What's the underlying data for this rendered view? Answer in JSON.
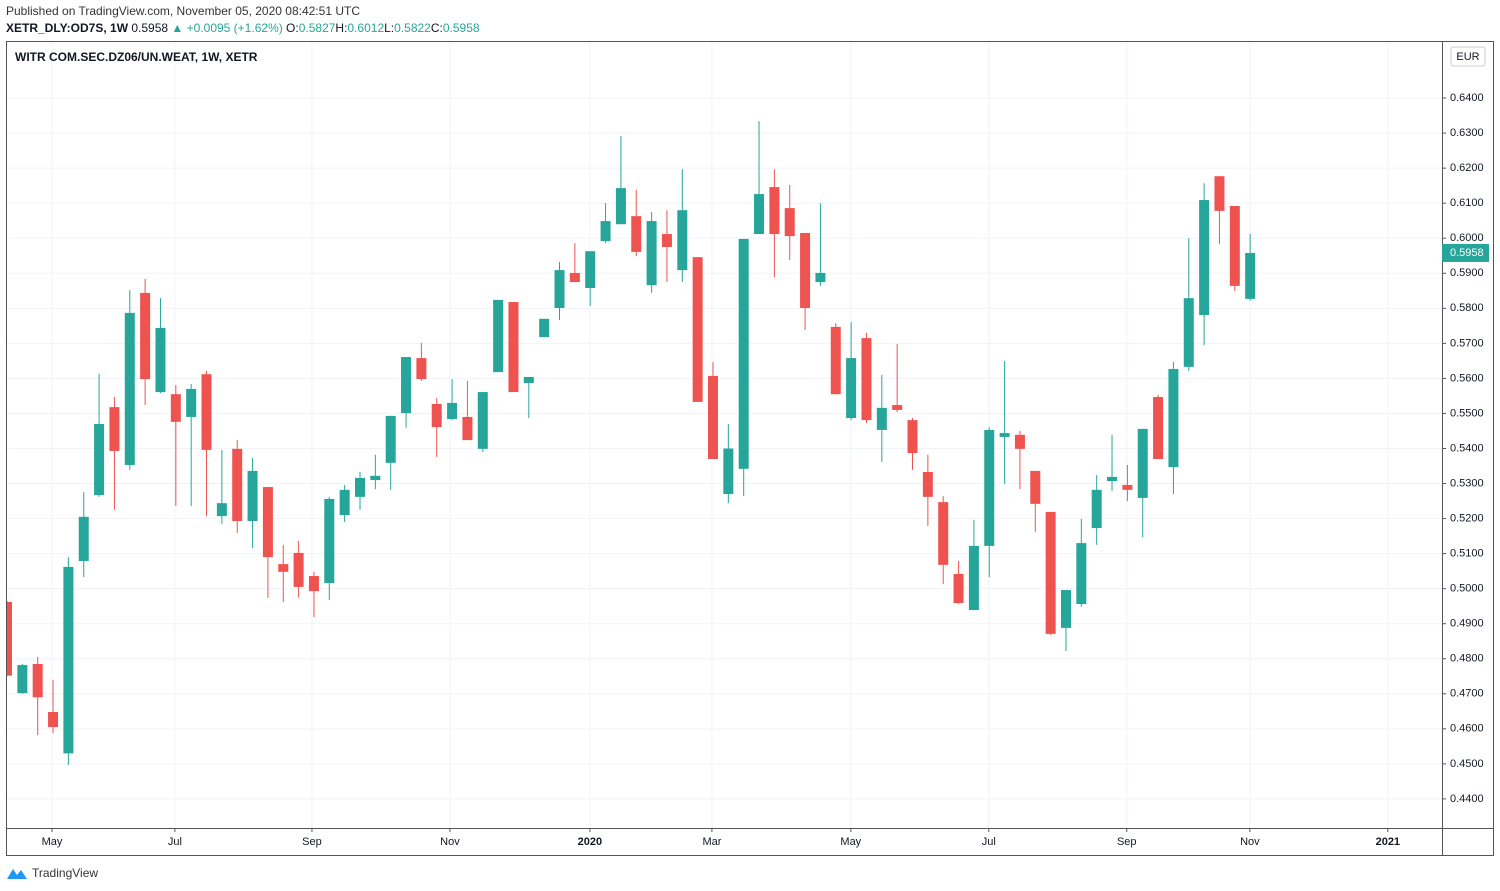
{
  "header": {
    "published": "Published on TradingView.com, November 05, 2020 08:42:51 UTC",
    "symbol": "XETR_DLY:OD7S, 1W",
    "price": "0.5958",
    "change": "▲ +0.0095 (+1.62%)",
    "ohlc": [
      {
        "label": "O:",
        "value": "0.5827"
      },
      {
        "label": "H:",
        "value": "0.6012"
      },
      {
        "label": "L:",
        "value": "0.5822"
      },
      {
        "label": "C:",
        "value": "0.5958"
      }
    ]
  },
  "footer": {
    "brand": "TradingView"
  },
  "chart_data": {
    "type": "candlestick",
    "title": "WITR COM.SEC.DZ06/UN.WEAT, 1W, XETR",
    "currency": "EUR",
    "up_color": "#26a69a",
    "down_color": "#ef5350",
    "grid": true,
    "open": [
      0.4962,
      0.4702,
      0.4785,
      0.4648,
      0.453,
      0.5079,
      0.5267,
      0.5518,
      0.5353,
      0.5844,
      0.5561,
      0.5555,
      0.549,
      0.5612,
      0.5207,
      0.5399,
      0.5193,
      0.529,
      0.507,
      0.5102,
      0.5036,
      0.5016,
      0.521,
      0.5262,
      0.531,
      0.5359,
      0.5501,
      0.5658,
      0.5527,
      0.5484,
      0.549,
      0.5399,
      0.5618,
      0.5818,
      0.5587,
      0.5718,
      0.5801,
      0.5901,
      0.5858,
      0.5992,
      0.604,
      0.6063,
      0.5866,
      0.6012,
      0.5909,
      0.5946,
      0.5607,
      0.527,
      0.5342,
      0.6012,
      0.6146,
      0.6086,
      0.6015,
      0.5875,
      0.5747,
      0.5487,
      0.5715,
      0.5453,
      0.5524,
      0.5481,
      0.5333,
      0.5247,
      0.5042,
      0.4939,
      0.5122,
      0.5433,
      0.5439,
      0.5336,
      0.5219,
      0.4888,
      0.4956,
      0.5173,
      0.5307,
      0.5296,
      0.5259,
      0.5547,
      0.5347,
      0.5633,
      0.5781,
      0.6177,
      0.6092,
      0.5827
    ],
    "high": [
      0.4965,
      0.4785,
      0.4805,
      0.474,
      0.509,
      0.5276,
      0.5613,
      0.5547,
      0.5852,
      0.5884,
      0.5829,
      0.5581,
      0.5584,
      0.5621,
      0.5396,
      0.5424,
      0.5373,
      0.529,
      0.5125,
      0.5136,
      0.5048,
      0.5262,
      0.5296,
      0.5333,
      0.5382,
      0.5493,
      0.5661,
      0.5701,
      0.5544,
      0.5598,
      0.5593,
      0.5561,
      0.5824,
      0.5818,
      0.5604,
      0.577,
      0.5932,
      0.5986,
      0.5963,
      0.61,
      0.6292,
      0.6138,
      0.6075,
      0.608,
      0.6197,
      0.5946,
      0.5647,
      0.547,
      0.5998,
      0.6334,
      0.6197,
      0.6152,
      0.6015,
      0.61,
      0.5758,
      0.5761,
      0.573,
      0.561,
      0.5698,
      0.5487,
      0.5382,
      0.5264,
      0.5079,
      0.5196,
      0.5461,
      0.565,
      0.545,
      0.5336,
      0.5219,
      0.4996,
      0.5199,
      0.5324,
      0.5439,
      0.5353,
      0.5456,
      0.5553,
      0.5647,
      0.6,
      0.6157,
      0.6177,
      0.6092,
      0.6012
    ],
    "low": [
      0.475,
      0.47,
      0.4582,
      0.4588,
      0.4497,
      0.5033,
      0.5262,
      0.5225,
      0.5339,
      0.5524,
      0.5558,
      0.5236,
      0.5236,
      0.5207,
      0.5185,
      0.5159,
      0.5116,
      0.4974,
      0.4962,
      0.4974,
      0.4919,
      0.4968,
      0.519,
      0.5225,
      0.5284,
      0.5282,
      0.5459,
      0.5593,
      0.5376,
      0.5481,
      0.5424,
      0.539,
      0.5618,
      0.5561,
      0.5487,
      0.5718,
      0.5767,
      0.5875,
      0.5807,
      0.5986,
      0.604,
      0.5949,
      0.5844,
      0.5875,
      0.5875,
      0.5533,
      0.537,
      0.5244,
      0.5264,
      0.6012,
      0.5889,
      0.5938,
      0.5738,
      0.5864,
      0.5555,
      0.5481,
      0.5473,
      0.5362,
      0.5504,
      0.5339,
      0.5179,
      0.5013,
      0.4956,
      0.4939,
      0.5033,
      0.5299,
      0.5284,
      0.5162,
      0.4868,
      0.4822,
      0.4948,
      0.5125,
      0.5279,
      0.525,
      0.5147,
      0.537,
      0.527,
      0.5621,
      0.5695,
      0.5983,
      0.5849,
      0.5822
    ],
    "close": [
      0.4752,
      0.4782,
      0.469,
      0.4605,
      0.5062,
      0.5205,
      0.547,
      0.5393,
      0.5787,
      0.5598,
      0.5744,
      0.5476,
      0.557,
      0.5396,
      0.5244,
      0.5193,
      0.5336,
      0.509,
      0.5048,
      0.5005,
      0.4993,
      0.5256,
      0.5282,
      0.5316,
      0.5322,
      0.5493,
      0.5661,
      0.5598,
      0.5461,
      0.553,
      0.5424,
      0.5561,
      0.5824,
      0.5561,
      0.5604,
      0.577,
      0.5909,
      0.5875,
      0.5963,
      0.6049,
      0.6143,
      0.5961,
      0.6049,
      0.5975,
      0.608,
      0.5533,
      0.537,
      0.54,
      0.5998,
      0.6126,
      0.6012,
      0.6006,
      0.5801,
      0.5901,
      0.5555,
      0.5658,
      0.5481,
      0.5516,
      0.551,
      0.5387,
      0.5262,
      0.5068,
      0.4959,
      0.5122,
      0.5453,
      0.5444,
      0.5399,
      0.5242,
      0.4871,
      0.4996,
      0.513,
      0.5282,
      0.5319,
      0.5282,
      0.5456,
      0.537,
      0.5627,
      0.5829,
      0.6109,
      0.6078,
      0.5864,
      0.5958
    ],
    "xlim": [
      0,
      93.5
    ],
    "xticks": [
      {
        "value": 2.93,
        "label": "May"
      },
      {
        "value": 10.94,
        "label": "Jul"
      },
      {
        "value": 19.87,
        "label": "Sep"
      },
      {
        "value": 28.86,
        "label": "Nov"
      },
      {
        "value": 37.98,
        "label": "2020"
      },
      {
        "value": 45.93,
        "label": "Mar"
      },
      {
        "value": 54.98,
        "label": "May"
      },
      {
        "value": 63.97,
        "label": "Jul"
      },
      {
        "value": 72.96,
        "label": "Sep"
      },
      {
        "value": 80.98,
        "label": "Nov"
      },
      {
        "value": 89.97,
        "label": "2021"
      }
    ],
    "ylim": [
      0.4317,
      0.656
    ],
    "yticks": [
      {
        "value": 0.44,
        "label": "0.4400"
      },
      {
        "value": 0.45,
        "label": "0.4500"
      },
      {
        "value": 0.46,
        "label": "0.4600"
      },
      {
        "value": 0.47,
        "label": "0.4700"
      },
      {
        "value": 0.48,
        "label": "0.4800"
      },
      {
        "value": 0.49,
        "label": "0.4900"
      },
      {
        "value": 0.5,
        "label": "0.5000"
      },
      {
        "value": 0.51,
        "label": "0.5100"
      },
      {
        "value": 0.52,
        "label": "0.5200"
      },
      {
        "value": 0.53,
        "label": "0.5300"
      },
      {
        "value": 0.54,
        "label": "0.5400"
      },
      {
        "value": 0.55,
        "label": "0.5500"
      },
      {
        "value": 0.56,
        "label": "0.5600"
      },
      {
        "value": 0.57,
        "label": "0.5700"
      },
      {
        "value": 0.58,
        "label": "0.5800"
      },
      {
        "value": 0.59,
        "label": "0.5900"
      },
      {
        "value": 0.6,
        "label": "0.6000"
      },
      {
        "value": 0.61,
        "label": "0.6100"
      },
      {
        "value": 0.62,
        "label": "0.6200"
      },
      {
        "value": 0.63,
        "label": "0.6300"
      },
      {
        "value": 0.64,
        "label": "0.6400"
      }
    ]
  }
}
